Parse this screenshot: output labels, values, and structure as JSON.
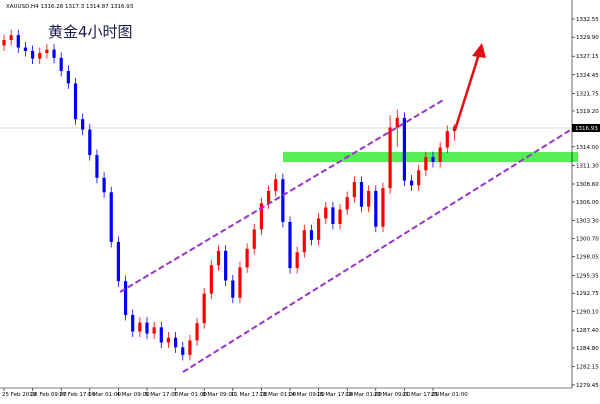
{
  "chart_data": {
    "type": "candlestick",
    "symbol": "XAUUSD,H4",
    "title": "黄金4小时图",
    "up_color": "#ff0000",
    "down_color": "#0000ff",
    "categories": [
      "25 Feb 2019",
      null,
      null,
      null,
      "26 Feb 09:00",
      null,
      null,
      null,
      "27 Feb 17:00",
      null,
      null,
      null,
      "1 Mar 01:00",
      null,
      null,
      null,
      "4 Mar 09:00",
      null,
      null,
      null,
      "5 Mar 17:00",
      null,
      null,
      null,
      "7 Mar 01:00",
      null,
      null,
      null,
      "8 Mar 09:00",
      null,
      null,
      null,
      "11 Mar 17:00",
      null,
      null,
      null,
      "13 Mar 01:00",
      null,
      null,
      null,
      "14 Mar 09:00",
      null,
      null,
      null,
      "15 Mar 17:00",
      null,
      null,
      null,
      "19 Mar 01:00",
      null,
      null,
      null,
      "20 Mar 09:00",
      null,
      null,
      null,
      "21 Mar 17:00",
      null,
      null,
      null,
      "25 Mar 01:00",
      null,
      null,
      null
    ],
    "open": [
      1328.7,
      1329.5,
      1330.2,
      1328.4,
      1327.9,
      1326.8,
      1327.6,
      1328.1,
      1326.9,
      1325.0,
      1323.2,
      1318.0,
      1316.5,
      1312.8,
      1309.5,
      1307.4,
      1300.2,
      1294.5,
      1289.6,
      1287.2,
      1288.5,
      1286.9,
      1287.8,
      1285.6,
      1286.3,
      1284.9,
      1283.8,
      1285.9,
      1288.4,
      1292.7,
      1296.8,
      1298.9,
      1294.6,
      1292.1,
      1296.5,
      1299.2,
      1302.0,
      1305.8,
      1307.6,
      1309.3,
      1303.1,
      1296.4,
      1298.7,
      1301.9,
      1300.5,
      1303.6,
      1305.2,
      1302.8,
      1304.9,
      1306.7,
      1308.9,
      1305.3,
      1307.6,
      1302.4,
      1308.0,
      1316.8,
      1318.2,
      1309.1,
      1308.4,
      1310.6,
      1312.5,
      1311.8,
      1313.9,
      1316.28
    ],
    "high": [
      1330.3,
      1331.0,
      1331.0,
      1329.2,
      1328.7,
      1328.4,
      1328.9,
      1328.9,
      1327.7,
      1325.8,
      1324.0,
      1318.8,
      1317.3,
      1313.6,
      1310.3,
      1308.2,
      1301.0,
      1295.3,
      1290.4,
      1289.3,
      1289.3,
      1288.6,
      1288.6,
      1287.1,
      1287.1,
      1285.7,
      1286.7,
      1289.2,
      1293.5,
      1297.6,
      1299.7,
      1299.7,
      1295.4,
      1297.3,
      1300.0,
      1302.8,
      1306.6,
      1308.4,
      1310.1,
      1310.1,
      1303.9,
      1299.5,
      1302.7,
      1302.7,
      1304.4,
      1306.0,
      1306.0,
      1305.7,
      1307.5,
      1309.7,
      1309.7,
      1308.4,
      1308.4,
      1308.8,
      1318.6,
      1319.4,
      1319.0,
      1309.9,
      1311.4,
      1313.3,
      1313.3,
      1314.7,
      1317.1,
      1317.3
    ],
    "low": [
      1327.9,
      1328.7,
      1327.6,
      1327.1,
      1326.0,
      1326.0,
      1326.8,
      1326.1,
      1324.2,
      1322.4,
      1317.2,
      1315.7,
      1312.0,
      1308.7,
      1306.6,
      1299.4,
      1293.7,
      1288.8,
      1286.4,
      1286.4,
      1286.1,
      1286.1,
      1284.8,
      1284.8,
      1284.1,
      1283.0,
      1283.0,
      1285.1,
      1287.6,
      1291.9,
      1296.0,
      1293.8,
      1291.3,
      1291.3,
      1295.7,
      1298.4,
      1301.2,
      1305.0,
      1306.8,
      1302.3,
      1295.6,
      1295.6,
      1297.9,
      1299.7,
      1299.7,
      1302.8,
      1302.0,
      1302.0,
      1304.1,
      1305.9,
      1304.5,
      1304.5,
      1301.6,
      1301.6,
      1307.2,
      1314.0,
      1308.3,
      1307.6,
      1307.6,
      1309.8,
      1311.0,
      1311.0,
      1313.1,
      1314.87
    ],
    "close": [
      1329.5,
      1330.2,
      1328.4,
      1327.9,
      1326.8,
      1327.6,
      1328.1,
      1326.9,
      1325.0,
      1323.2,
      1318.0,
      1316.5,
      1312.8,
      1309.5,
      1307.4,
      1300.2,
      1294.5,
      1289.6,
      1287.2,
      1288.5,
      1286.9,
      1287.8,
      1285.6,
      1286.3,
      1284.9,
      1283.8,
      1285.9,
      1288.4,
      1292.7,
      1296.8,
      1298.9,
      1294.6,
      1292.1,
      1296.5,
      1299.2,
      1302.0,
      1305.8,
      1307.6,
      1309.3,
      1303.1,
      1296.4,
      1298.7,
      1301.9,
      1300.5,
      1303.6,
      1305.2,
      1302.8,
      1304.9,
      1306.7,
      1308.9,
      1305.3,
      1307.6,
      1302.4,
      1308.0,
      1316.8,
      1318.2,
      1309.1,
      1308.4,
      1310.6,
      1312.5,
      1311.8,
      1313.9,
      1316.28,
      1316.93
    ],
    "ylim": [
      1279.0,
      1335.3
    ],
    "yticks": [
      1332.55,
      {
        "value": 1329.9,
        "label": "1329.90"
      },
      1327.15,
      1324.45,
      1321.75,
      {
        "value": 1319.2,
        "label": "1319.20"
      },
      {
        "value": 1314.0,
        "label": "1314.00"
      },
      {
        "value": 1311.3,
        "label": "1311.30"
      },
      {
        "value": 1308.6,
        "label": "1308.60"
      },
      {
        "value": 1306.0,
        "label": "1306.00"
      },
      {
        "value": 1303.3,
        "label": "1303.30"
      },
      {
        "value": 1300.7,
        "label": "1300.70"
      },
      1298.05,
      1295.35,
      1292.75,
      {
        "value": 1290.1,
        "label": "1290.10"
      },
      {
        "value": 1287.4,
        "label": "1287.40"
      },
      {
        "value": 1284.8,
        "label": "1284.80"
      },
      1282.15,
      1279.45
    ]
  }
}
